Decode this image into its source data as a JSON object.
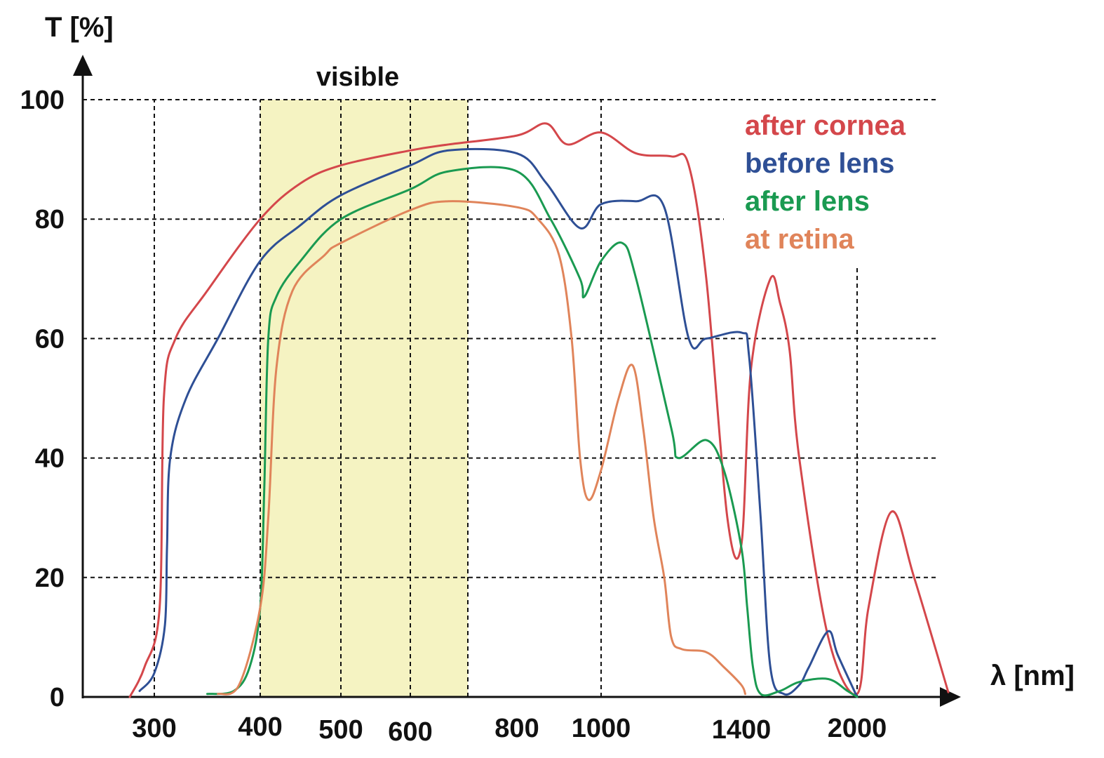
{
  "chart_data": {
    "type": "line",
    "ylabel": "T [%]",
    "xlabel": "λ [nm]",
    "ylim": [
      0,
      100
    ],
    "y_ticks": [
      "0",
      "20",
      "40",
      "60",
      "80",
      "100"
    ],
    "x_ticks": [
      "300",
      "400",
      "500",
      "600",
      "800",
      "1000",
      "1400",
      "2000"
    ],
    "x_tick_values": [
      300,
      400,
      500,
      600,
      800,
      1000,
      1400,
      2000
    ],
    "grid": "dashed",
    "legend_position": "top-right",
    "visible_band": {
      "label": "visible",
      "from": 400,
      "to": 750,
      "color": "#f5f3c2"
    },
    "series": [
      {
        "name": "after cornea",
        "color": "#d4474b",
        "points": [
          [
            275,
            0
          ],
          [
            290,
            5
          ],
          [
            305,
            15
          ],
          [
            309,
            50
          ],
          [
            320,
            60
          ],
          [
            350,
            68
          ],
          [
            400,
            80
          ],
          [
            450,
            86
          ],
          [
            500,
            89
          ],
          [
            600,
            91.5
          ],
          [
            700,
            92.5
          ],
          [
            800,
            94
          ],
          [
            870,
            96
          ],
          [
            920,
            92.5
          ],
          [
            1000,
            94.5
          ],
          [
            1100,
            91
          ],
          [
            1200,
            90.5
          ],
          [
            1250,
            89
          ],
          [
            1300,
            70
          ],
          [
            1360,
            30
          ],
          [
            1400,
            25.5
          ],
          [
            1450,
            55
          ],
          [
            1550,
            70
          ],
          [
            1600,
            66
          ],
          [
            1650,
            58
          ],
          [
            1700,
            40
          ],
          [
            1850,
            10
          ],
          [
            2000,
            0.5
          ],
          [
            2050,
            15
          ],
          [
            2150,
            31
          ],
          [
            2250,
            20
          ],
          [
            2400,
            0.8
          ]
        ]
      },
      {
        "name": "before lens",
        "color": "#2e4f95",
        "points": [
          [
            285,
            1
          ],
          [
            300,
            4
          ],
          [
            310,
            12
          ],
          [
            312,
            25
          ],
          [
            315,
            40
          ],
          [
            330,
            50
          ],
          [
            360,
            60
          ],
          [
            400,
            73
          ],
          [
            450,
            79
          ],
          [
            500,
            84
          ],
          [
            600,
            89
          ],
          [
            700,
            91.5
          ],
          [
            800,
            91
          ],
          [
            870,
            86
          ],
          [
            950,
            78.5
          ],
          [
            1000,
            82.5
          ],
          [
            1100,
            83
          ],
          [
            1180,
            82
          ],
          [
            1250,
            60
          ],
          [
            1300,
            60
          ],
          [
            1400,
            61
          ],
          [
            1440,
            57
          ],
          [
            1500,
            30
          ],
          [
            1550,
            5
          ],
          [
            1620,
            0.5
          ],
          [
            1700,
            2
          ],
          [
            1750,
            5
          ],
          [
            1850,
            11
          ],
          [
            1900,
            7
          ],
          [
            2000,
            0
          ]
        ]
      },
      {
        "name": "after lens",
        "color": "#1a9a51",
        "points": [
          [
            350,
            0.5
          ],
          [
            375,
            1
          ],
          [
            390,
            5
          ],
          [
            400,
            15
          ],
          [
            405,
            35
          ],
          [
            410,
            60
          ],
          [
            420,
            67
          ],
          [
            450,
            73
          ],
          [
            500,
            80
          ],
          [
            600,
            85
          ],
          [
            700,
            88
          ],
          [
            800,
            88
          ],
          [
            880,
            80
          ],
          [
            950,
            70
          ],
          [
            960,
            67
          ],
          [
            1000,
            73
          ],
          [
            1060,
            76
          ],
          [
            1100,
            70
          ],
          [
            1200,
            45
          ],
          [
            1220,
            40
          ],
          [
            1300,
            43
          ],
          [
            1350,
            38
          ],
          [
            1400,
            25
          ],
          [
            1430,
            15
          ],
          [
            1460,
            5
          ],
          [
            1500,
            0.5
          ],
          [
            1600,
            1
          ],
          [
            1700,
            2.5
          ],
          [
            1850,
            3
          ],
          [
            1950,
            1
          ],
          [
            2000,
            0
          ]
        ]
      },
      {
        "name": "at retina",
        "color": "#e0845a",
        "points": [
          [
            360,
            0.5
          ],
          [
            380,
            2
          ],
          [
            400,
            15
          ],
          [
            410,
            30
          ],
          [
            420,
            55
          ],
          [
            440,
            68
          ],
          [
            480,
            74
          ],
          [
            500,
            76
          ],
          [
            600,
            81.5
          ],
          [
            700,
            83
          ],
          [
            800,
            82
          ],
          [
            850,
            80
          ],
          [
            900,
            74
          ],
          [
            930,
            60
          ],
          [
            950,
            40
          ],
          [
            970,
            33
          ],
          [
            1000,
            38
          ],
          [
            1050,
            50
          ],
          [
            1090,
            55.5
          ],
          [
            1120,
            45
          ],
          [
            1150,
            30
          ],
          [
            1180,
            20
          ],
          [
            1200,
            10
          ],
          [
            1230,
            8
          ],
          [
            1300,
            7.5
          ],
          [
            1350,
            5
          ],
          [
            1400,
            2
          ],
          [
            1420,
            0.5
          ]
        ]
      }
    ]
  }
}
